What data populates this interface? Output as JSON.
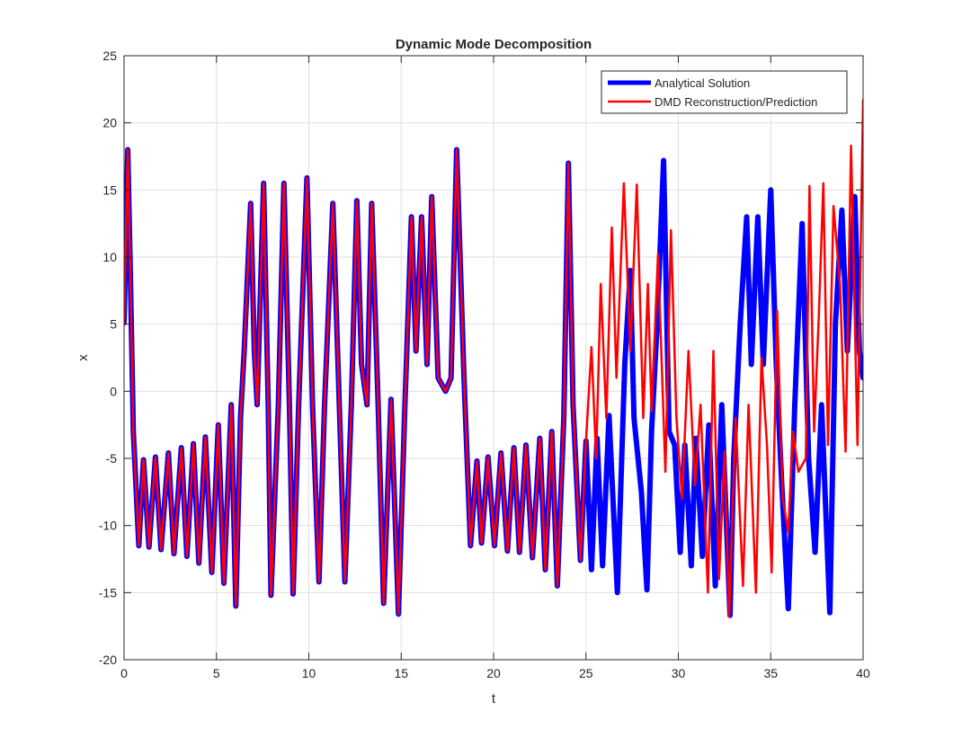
{
  "chart_data": {
    "type": "line",
    "title": "Dynamic Mode Decomposition",
    "xlabel": "t",
    "ylabel": "x",
    "xlim": [
      0,
      40
    ],
    "ylim": [
      -20,
      25
    ],
    "xticks": [
      0,
      5,
      10,
      15,
      20,
      25,
      30,
      35,
      40
    ],
    "yticks": [
      -20,
      -15,
      -10,
      -5,
      0,
      5,
      10,
      15,
      20,
      25
    ],
    "grid": true,
    "legend_position": "top-right",
    "series": [
      {
        "name": "Analytical Solution",
        "color": "#0000ff",
        "style": "thick",
        "points": [
          [
            0,
            5.1
          ],
          [
            0.2,
            18
          ],
          [
            0.35,
            8
          ],
          [
            0.5,
            -3
          ],
          [
            0.8,
            -11.5
          ],
          [
            1.05,
            -5.1
          ],
          [
            1.35,
            -11.6
          ],
          [
            1.7,
            -4.9
          ],
          [
            2,
            -11.8
          ],
          [
            2.4,
            -4.6
          ],
          [
            2.7,
            -12.1
          ],
          [
            3.1,
            -4.2
          ],
          [
            3.4,
            -12.3
          ],
          [
            3.75,
            -3.9
          ],
          [
            4.05,
            -12.8
          ],
          [
            4.4,
            -3.4
          ],
          [
            4.75,
            -13.5
          ],
          [
            5.1,
            -2.5
          ],
          [
            5.4,
            -14.3
          ],
          [
            5.8,
            -1
          ],
          [
            6.05,
            -16
          ],
          [
            6.3,
            -2
          ],
          [
            6.5,
            3
          ],
          [
            6.85,
            14
          ],
          [
            7.05,
            3
          ],
          [
            7.2,
            -1
          ],
          [
            7.55,
            15.5
          ],
          [
            7.8,
            -1
          ],
          [
            7.95,
            -15.2
          ],
          [
            8.35,
            -1
          ],
          [
            8.65,
            15.5
          ],
          [
            8.95,
            -1
          ],
          [
            9.15,
            -15.1
          ],
          [
            9.45,
            -1
          ],
          [
            9.9,
            15.9
          ],
          [
            10.2,
            -1
          ],
          [
            10.55,
            -14.2
          ],
          [
            10.85,
            -1
          ],
          [
            11.3,
            14
          ],
          [
            11.65,
            -1
          ],
          [
            11.95,
            -14.2
          ],
          [
            12.3,
            -1
          ],
          [
            12.6,
            14.2
          ],
          [
            12.85,
            2
          ],
          [
            13.15,
            -1
          ],
          [
            13.4,
            14
          ],
          [
            13.75,
            -1
          ],
          [
            14.05,
            -15.8
          ],
          [
            14.45,
            -0.6
          ],
          [
            14.85,
            -16.6
          ],
          [
            15.2,
            -1
          ],
          [
            15.55,
            13
          ],
          [
            15.8,
            3
          ],
          [
            16.1,
            13
          ],
          [
            16.4,
            2
          ],
          [
            16.65,
            14.5
          ],
          [
            17,
            1
          ],
          [
            17.4,
            0
          ],
          [
            17.7,
            1
          ],
          [
            18,
            18
          ],
          [
            18.4,
            1
          ],
          [
            18.75,
            -11.5
          ],
          [
            19.1,
            -5.2
          ],
          [
            19.35,
            -11.3
          ],
          [
            19.7,
            -4.9
          ],
          [
            20.05,
            -11.5
          ],
          [
            20.4,
            -4.6
          ],
          [
            20.75,
            -11.9
          ],
          [
            21.1,
            -4.2
          ],
          [
            21.4,
            -12
          ],
          [
            21.75,
            -4
          ],
          [
            22.1,
            -12.4
          ],
          [
            22.5,
            -3.5
          ],
          [
            22.8,
            -13.3
          ],
          [
            23.15,
            -3
          ],
          [
            23.45,
            -14.5
          ],
          [
            23.8,
            -2
          ],
          [
            24.05,
            17
          ],
          [
            24.3,
            -1
          ],
          [
            24.7,
            -12.6
          ],
          [
            25,
            -3.7
          ],
          [
            25.3,
            -13.3
          ],
          [
            25.6,
            -3.5
          ],
          [
            25.9,
            -13
          ],
          [
            26.25,
            -1.8
          ],
          [
            26.7,
            -15
          ],
          [
            27.1,
            2
          ],
          [
            27.4,
            9
          ],
          [
            27.6,
            -2
          ],
          [
            28,
            -7.5
          ],
          [
            28.3,
            -14.8
          ],
          [
            28.55,
            -3
          ],
          [
            28.85,
            5
          ],
          [
            29.2,
            17.2
          ],
          [
            29.5,
            -3
          ],
          [
            29.8,
            -4
          ],
          [
            30.1,
            -12
          ],
          [
            30.35,
            -4
          ],
          [
            30.7,
            -13
          ],
          [
            30.95,
            -3.5
          ],
          [
            31.3,
            -12.3
          ],
          [
            31.65,
            -2.5
          ],
          [
            32,
            -14.5
          ],
          [
            32.35,
            -1
          ],
          [
            32.8,
            -16.7
          ],
          [
            33,
            -5
          ],
          [
            33.35,
            5
          ],
          [
            33.7,
            13
          ],
          [
            33.95,
            2
          ],
          [
            34.3,
            13
          ],
          [
            34.6,
            2
          ],
          [
            35,
            15
          ],
          [
            35.3,
            2
          ],
          [
            35.6,
            -7
          ],
          [
            35.95,
            -16.2
          ],
          [
            36.3,
            -1
          ],
          [
            36.7,
            12.5
          ],
          [
            37.05,
            -5
          ],
          [
            37.4,
            -12
          ],
          [
            37.75,
            -1
          ],
          [
            38.2,
            -16.5
          ],
          [
            38.5,
            5
          ],
          [
            38.85,
            13.5
          ],
          [
            39.15,
            3
          ],
          [
            39.55,
            14.5
          ],
          [
            39.8,
            3
          ],
          [
            40,
            1
          ]
        ]
      },
      {
        "name": "DMD Reconstruction/Prediction",
        "color": "#ff0000",
        "style": "thin",
        "points": [
          [
            0,
            5.1
          ],
          [
            0.2,
            18
          ],
          [
            0.35,
            8
          ],
          [
            0.5,
            -3
          ],
          [
            0.8,
            -11.5
          ],
          [
            1.05,
            -5.1
          ],
          [
            1.35,
            -11.6
          ],
          [
            1.7,
            -4.9
          ],
          [
            2,
            -11.8
          ],
          [
            2.4,
            -4.6
          ],
          [
            2.7,
            -12.1
          ],
          [
            3.1,
            -4.2
          ],
          [
            3.4,
            -12.3
          ],
          [
            3.75,
            -3.9
          ],
          [
            4.05,
            -12.8
          ],
          [
            4.4,
            -3.4
          ],
          [
            4.75,
            -13.5
          ],
          [
            5.1,
            -2.5
          ],
          [
            5.4,
            -14.3
          ],
          [
            5.8,
            -1
          ],
          [
            6.05,
            -16
          ],
          [
            6.3,
            -2
          ],
          [
            6.5,
            3
          ],
          [
            6.85,
            14
          ],
          [
            7.05,
            3
          ],
          [
            7.2,
            -1
          ],
          [
            7.55,
            15.5
          ],
          [
            7.8,
            -1
          ],
          [
            7.95,
            -15.2
          ],
          [
            8.35,
            -1
          ],
          [
            8.65,
            15.5
          ],
          [
            8.95,
            -1
          ],
          [
            9.15,
            -15.1
          ],
          [
            9.45,
            -1
          ],
          [
            9.9,
            15.9
          ],
          [
            10.2,
            -1
          ],
          [
            10.55,
            -14.2
          ],
          [
            10.85,
            -1
          ],
          [
            11.3,
            14
          ],
          [
            11.65,
            -1
          ],
          [
            11.95,
            -14.2
          ],
          [
            12.3,
            -1
          ],
          [
            12.6,
            14.2
          ],
          [
            12.85,
            2
          ],
          [
            13.15,
            -1
          ],
          [
            13.4,
            14
          ],
          [
            13.75,
            -1
          ],
          [
            14.05,
            -15.8
          ],
          [
            14.45,
            -0.6
          ],
          [
            14.85,
            -16.6
          ],
          [
            15.2,
            -1
          ],
          [
            15.55,
            13
          ],
          [
            15.8,
            3
          ],
          [
            16.1,
            13
          ],
          [
            16.4,
            2
          ],
          [
            16.65,
            14.5
          ],
          [
            17,
            1
          ],
          [
            17.4,
            0
          ],
          [
            17.7,
            1
          ],
          [
            18,
            18
          ],
          [
            18.4,
            1
          ],
          [
            18.75,
            -11.5
          ],
          [
            19.1,
            -5.2
          ],
          [
            19.35,
            -11.3
          ],
          [
            19.7,
            -4.9
          ],
          [
            20.05,
            -11.5
          ],
          [
            20.4,
            -4.6
          ],
          [
            20.75,
            -11.9
          ],
          [
            21.1,
            -4.2
          ],
          [
            21.4,
            -12
          ],
          [
            21.75,
            -4
          ],
          [
            22.1,
            -12.4
          ],
          [
            22.5,
            -3.5
          ],
          [
            22.8,
            -13.3
          ],
          [
            23.15,
            -3
          ],
          [
            23.45,
            -14.5
          ],
          [
            23.8,
            -2
          ],
          [
            24.05,
            17
          ],
          [
            24.3,
            -1
          ],
          [
            24.7,
            -12.6
          ],
          [
            25,
            -3.7
          ],
          [
            25.3,
            3.3
          ],
          [
            25.55,
            -5
          ],
          [
            25.8,
            8
          ],
          [
            26.1,
            -2
          ],
          [
            26.4,
            12.2
          ],
          [
            26.65,
            1
          ],
          [
            27.05,
            15.5
          ],
          [
            27.4,
            3
          ],
          [
            27.75,
            15.4
          ],
          [
            28.1,
            -2
          ],
          [
            28.35,
            8
          ],
          [
            28.55,
            -1.5
          ],
          [
            28.9,
            10.2
          ],
          [
            29.3,
            -6
          ],
          [
            29.6,
            12
          ],
          [
            29.9,
            -2
          ],
          [
            30.2,
            -8
          ],
          [
            30.55,
            3
          ],
          [
            30.9,
            -7
          ],
          [
            31.2,
            -1
          ],
          [
            31.6,
            -15
          ],
          [
            31.9,
            3
          ],
          [
            32.2,
            -14
          ],
          [
            32.5,
            -4.5
          ],
          [
            32.75,
            -16.8
          ],
          [
            33.1,
            -2
          ],
          [
            33.5,
            -14.5
          ],
          [
            33.8,
            -1
          ],
          [
            34.2,
            -15
          ],
          [
            34.5,
            2.5
          ],
          [
            34.8,
            -4
          ],
          [
            35.05,
            -13.5
          ],
          [
            35.35,
            6
          ],
          [
            35.65,
            -8
          ],
          [
            35.95,
            -10.5
          ],
          [
            36.2,
            -3
          ],
          [
            36.5,
            -6
          ],
          [
            36.9,
            -5
          ],
          [
            37.1,
            15.3
          ],
          [
            37.35,
            -3
          ],
          [
            37.6,
            5.5
          ],
          [
            37.85,
            15.5
          ],
          [
            38.1,
            -4
          ],
          [
            38.4,
            13.8
          ],
          [
            38.75,
            8
          ],
          [
            39.05,
            -4.5
          ],
          [
            39.35,
            18.3
          ],
          [
            39.7,
            -4
          ],
          [
            40,
            21.7
          ]
        ]
      }
    ]
  }
}
